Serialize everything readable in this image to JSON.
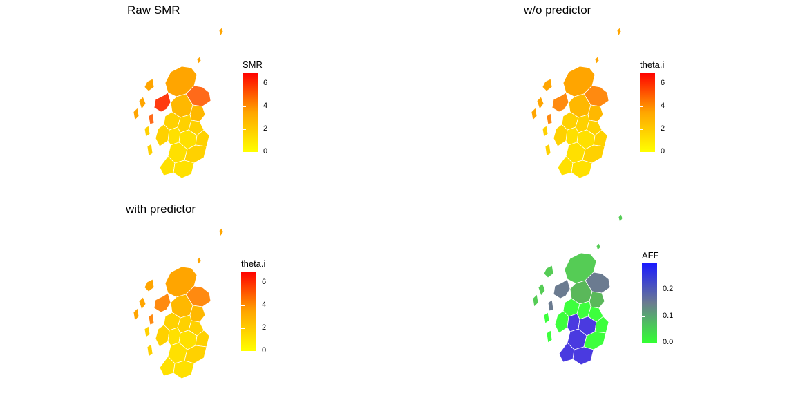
{
  "panels": [
    {
      "title": "Raw SMR",
      "legend": {
        "title": "SMR",
        "ticks": [
          "0",
          "2",
          "4",
          "6"
        ],
        "tick_values": [
          0,
          2,
          4,
          6
        ],
        "range": [
          0,
          7
        ],
        "gradient": [
          "#ffff00",
          "#ffa500",
          "#ff0000"
        ]
      },
      "highlight_colors": [
        "#ff6a1a",
        "#ffa500",
        "#ffb800",
        "#ffd100",
        "#ffe000",
        "#ff3a10"
      ]
    },
    {
      "title": "w/o predictor",
      "legend": {
        "title": "theta.i",
        "ticks": [
          "0",
          "2",
          "4",
          "6"
        ],
        "tick_values": [
          0,
          2,
          4,
          6
        ],
        "range": [
          0,
          7
        ],
        "gradient": [
          "#ffff00",
          "#ffa500",
          "#ff0000"
        ]
      },
      "highlight_colors": [
        "#ff8a10",
        "#ffa500",
        "#ffb800",
        "#ffd100",
        "#ffe000",
        "#ff8a10"
      ]
    },
    {
      "title": "with predictor",
      "legend": {
        "title": "theta.i",
        "ticks": [
          "0",
          "2",
          "4",
          "6"
        ],
        "tick_values": [
          0,
          2,
          4,
          6
        ],
        "range": [
          0,
          7
        ],
        "gradient": [
          "#ffff00",
          "#ffa500",
          "#ff0000"
        ]
      },
      "highlight_colors": [
        "#ff8a10",
        "#ffa500",
        "#ffb800",
        "#ffd100",
        "#ffe000",
        "#ff8a10"
      ]
    },
    {
      "title": "",
      "legend": {
        "title": "AFF",
        "ticks": [
          "0.0",
          "0.1",
          "0.2"
        ],
        "tick_values": [
          0,
          0.1,
          0.2
        ],
        "range": [
          0,
          0.3
        ],
        "gradient": [
          "#33ff33",
          "#6b7b90",
          "#1a1aff"
        ]
      },
      "highlight_colors": [
        "#6b7b90",
        "#55cc55",
        "#5ab85a",
        "#3dff3d",
        "#4a3ae0",
        "#6b7b90"
      ]
    }
  ]
}
